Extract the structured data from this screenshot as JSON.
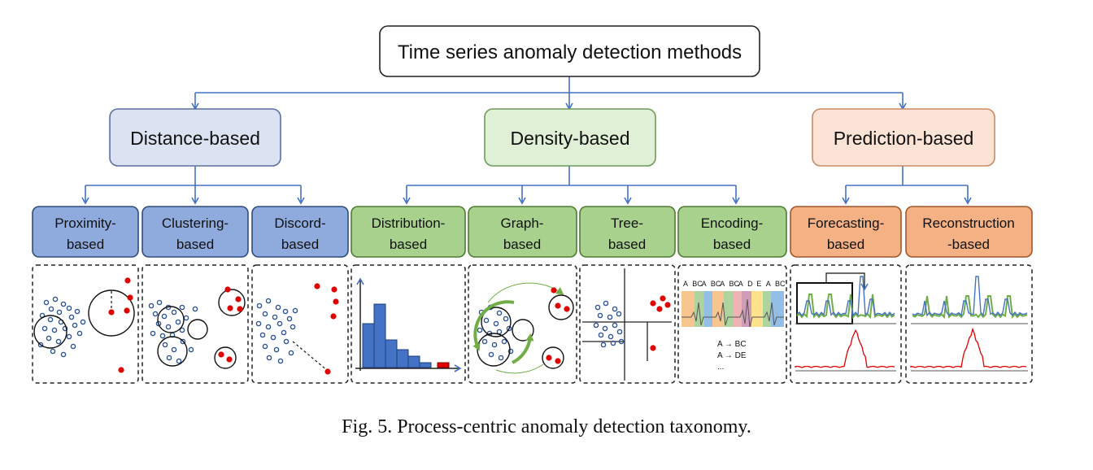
{
  "root": {
    "label": "Time series anomaly detection methods"
  },
  "categories": [
    {
      "label": "Distance-based",
      "fill": "#dbe3f3",
      "stroke": "#5b6f9e"
    },
    {
      "label": "Density-based",
      "fill": "#dff0d6",
      "stroke": "#6e9a5a"
    },
    {
      "label": "Prediction-based",
      "fill": "#fbe3d6",
      "stroke": "#c98a66"
    }
  ],
  "methods": [
    {
      "line1": "Proximity-",
      "line2": "based",
      "group": 0
    },
    {
      "line1": "Clustering-",
      "line2": "based",
      "group": 0
    },
    {
      "line1": "Discord-",
      "line2": "based",
      "group": 0
    },
    {
      "line1": "Distribution-",
      "line2": "based",
      "group": 1
    },
    {
      "line1": "Graph-",
      "line2": "based",
      "group": 1
    },
    {
      "line1": "Tree-",
      "line2": "based",
      "group": 1
    },
    {
      "line1": "Encoding-",
      "line2": "based",
      "group": 1
    },
    {
      "line1": "Forecasting-",
      "line2": "based",
      "group": 2
    },
    {
      "line1": "Reconstruction",
      "line2": "-based",
      "group": 2
    }
  ],
  "method_colors": [
    {
      "fill": "#8faadc",
      "stroke": "#2f4b7c"
    },
    {
      "fill": "#a9d18e",
      "stroke": "#4f7a32"
    },
    {
      "fill": "#f4b183",
      "stroke": "#a0562b"
    }
  ],
  "encoding_panel": {
    "symbols": [
      "A",
      "BC",
      "A",
      "BC",
      "A",
      "BC",
      "A",
      "D",
      "E",
      "A",
      "BC"
    ],
    "rules": [
      "A →  BC",
      "A →  DE",
      "..."
    ]
  },
  "colors": {
    "connector": "#4472c4",
    "inlier": "#2f5597",
    "outlier": "#e00000",
    "histogram": "#4472c4",
    "signal_green": "#70ad47",
    "signal_blue": "#4472c4",
    "error_line": "#e00000"
  },
  "caption": "Fig. 5.  Process-centric anomaly detection taxonomy."
}
